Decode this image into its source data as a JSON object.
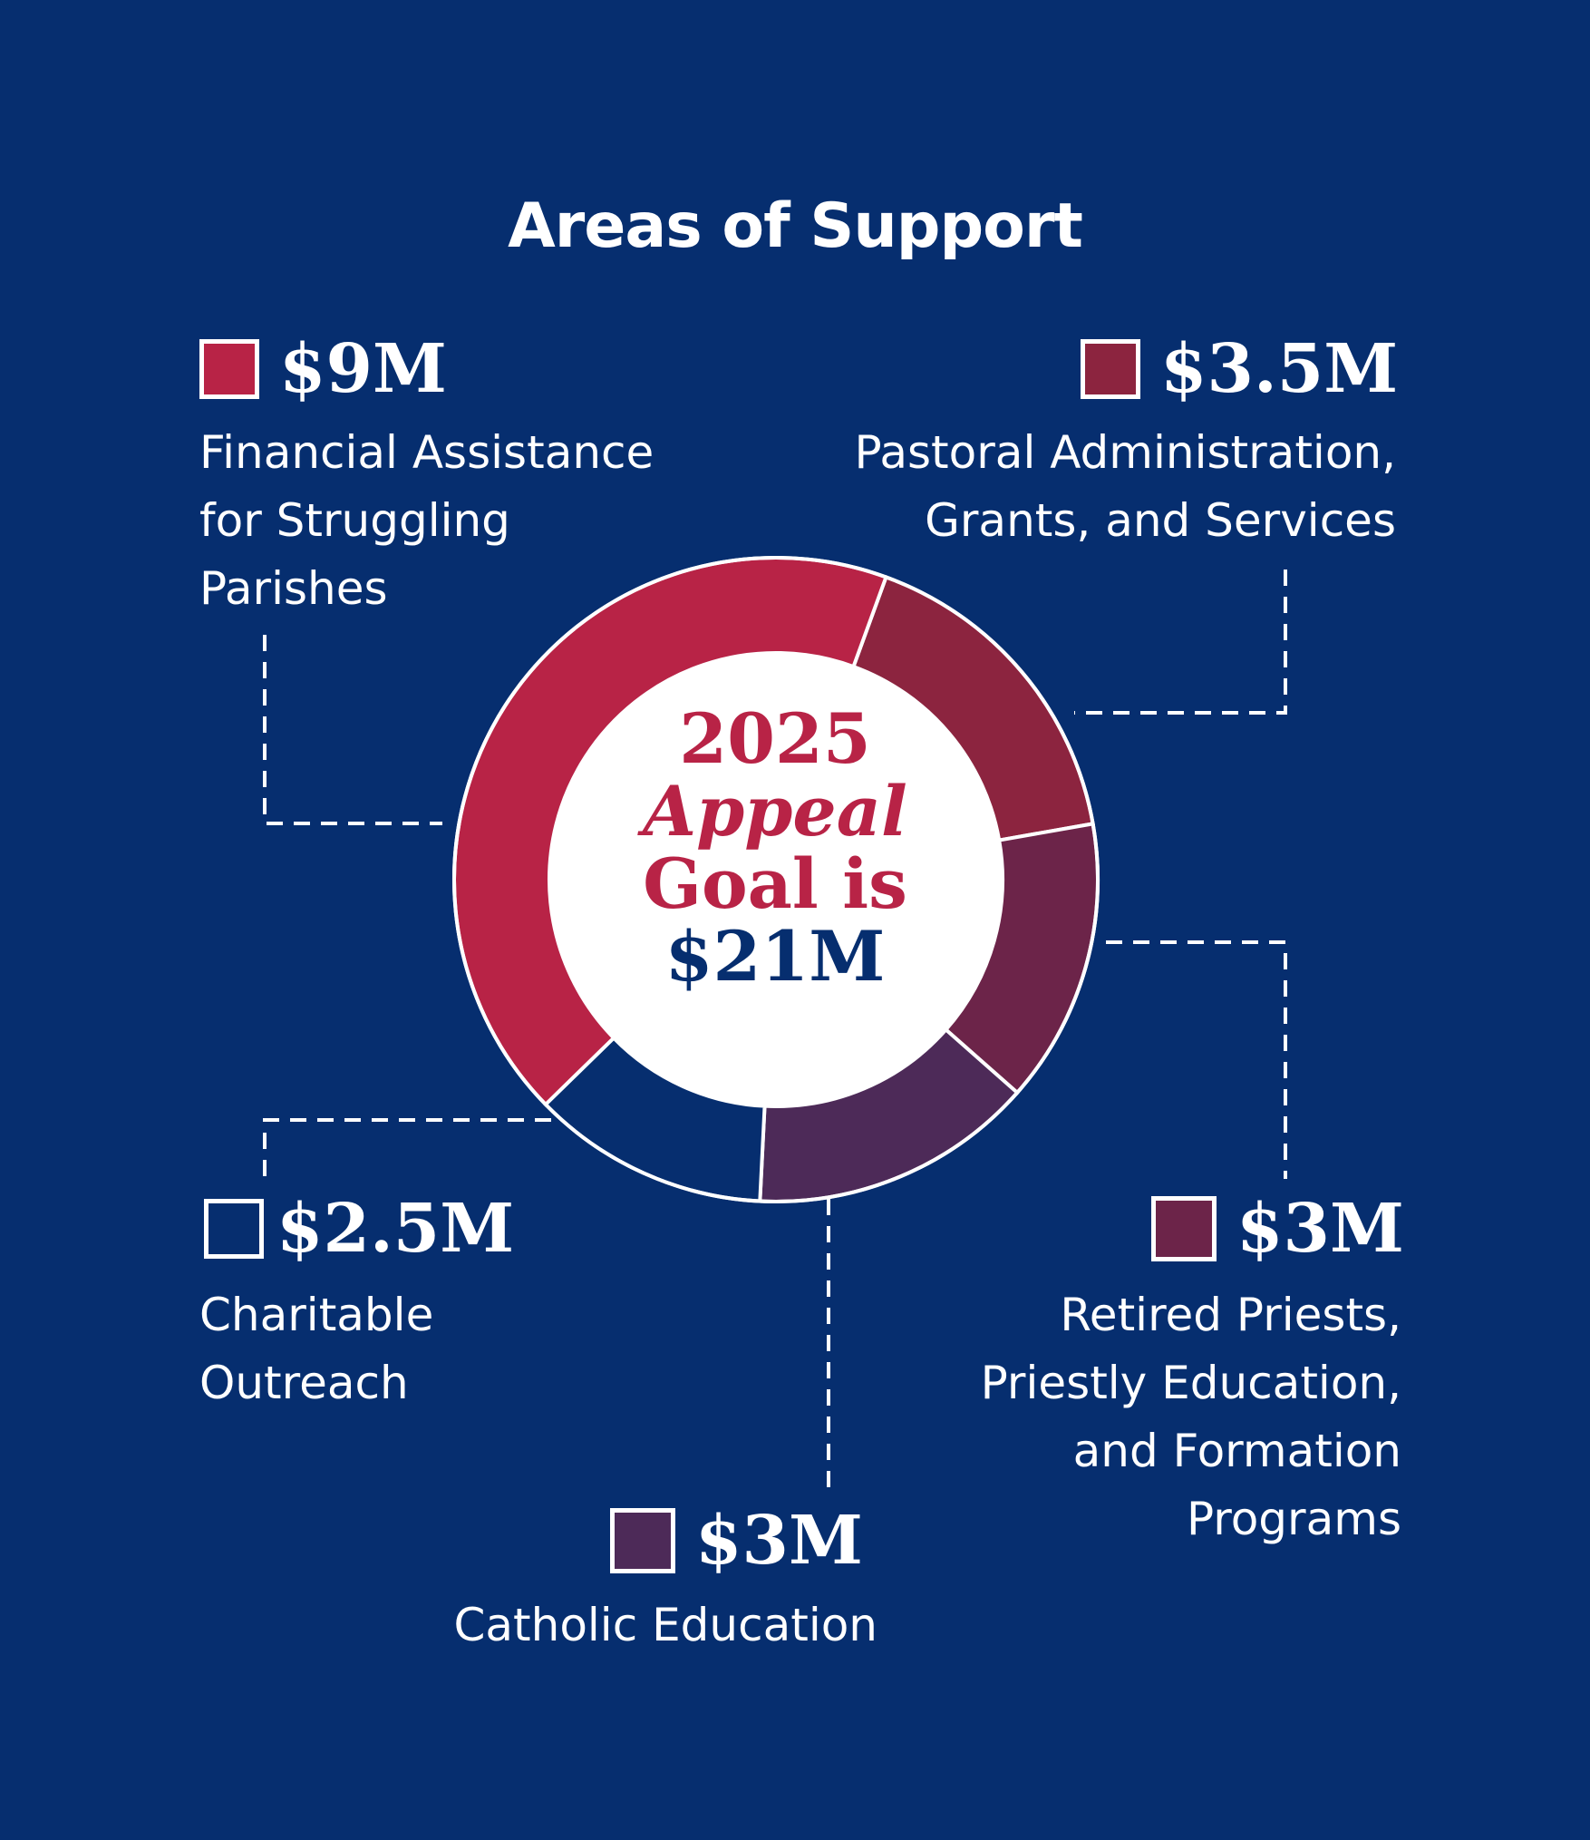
{
  "title": "Areas of Support",
  "center_label": {
    "line1": "2025",
    "line2": "Appeal",
    "line3": "Goal is",
    "line4": "$21M"
  },
  "colors": {
    "background": "#062e6f",
    "financial_assistance": "#b82346",
    "pastoral": "#8c243f",
    "retired_priests": "#6c2449",
    "catholic_education": "#4d2a58",
    "charitable_outreach": "#062e6f",
    "center_red": "#b82346",
    "center_navy": "#062e6f"
  },
  "chart_data": {
    "type": "pie",
    "style": "donut",
    "title": "Areas of Support",
    "total": 21,
    "unit": "$M",
    "slices": [
      {
        "label": "Financial Assistance for Struggling Parishes",
        "value": 9,
        "display": "$9M",
        "color": "#b82346"
      },
      {
        "label": "Pastoral Administration, Grants, and Services",
        "value": 3.5,
        "display": "$3.5M",
        "color": "#8c243f"
      },
      {
        "label": "Retired Priests, Priestly Education, and Formation Programs",
        "value": 3,
        "display": "$3M",
        "color": "#6c2449"
      },
      {
        "label": "Catholic Education",
        "value": 3,
        "display": "$3M",
        "color": "#4d2a58"
      },
      {
        "label": "Charitable Outreach",
        "value": 2.5,
        "display": "$2.5M",
        "color": "#062e6f"
      }
    ]
  }
}
